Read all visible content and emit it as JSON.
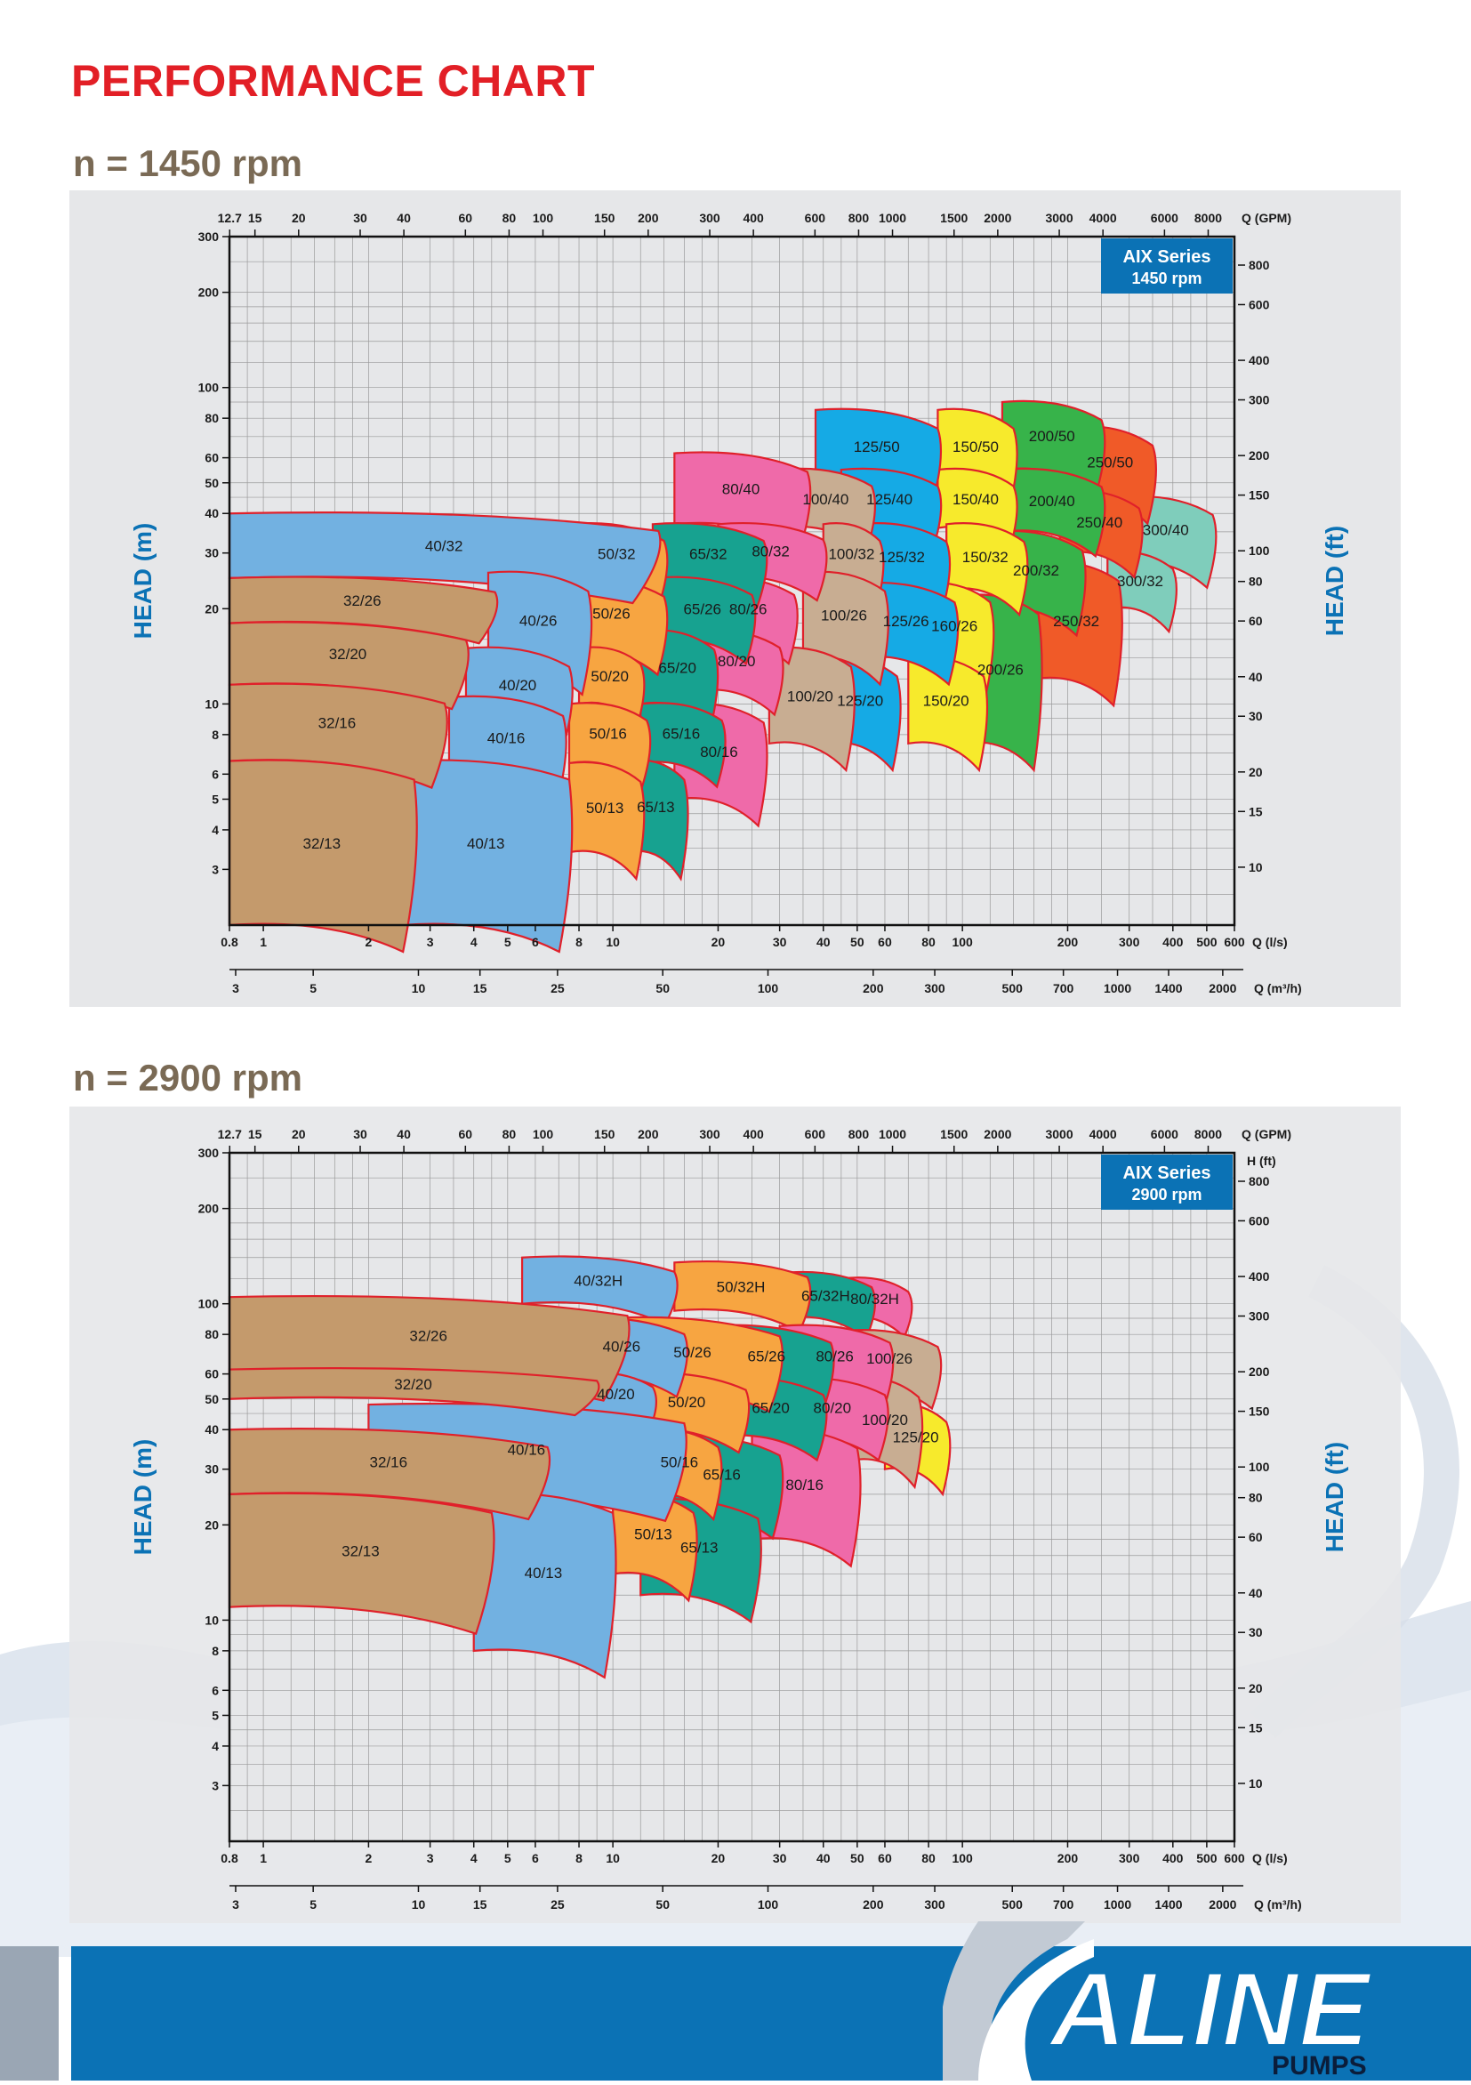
{
  "page": {
    "title": "PERFORMANCE CHART"
  },
  "brand": {
    "logo_text": "ALINE",
    "logo_sub": "PUMPS",
    "colors": {
      "title_red": "#e21f26",
      "blue": "#0b72b5",
      "grey_heading": "#7a6a55"
    }
  },
  "axes": {
    "gpm_label": "Q (GPM)",
    "ls_label": "Q (l/s)",
    "m3h_label": "Q (m³/h)",
    "head_m_label": "HEAD (m)",
    "head_ft_label": "HEAD (ft)",
    "hft_label": "H (ft)",
    "gpm_ticks": [
      "12.7",
      "15",
      "20",
      "30",
      "40",
      "60",
      "80",
      "100",
      "150",
      "200",
      "300",
      "400",
      "600",
      "800",
      "1000",
      "1500",
      "2000",
      "3000",
      "4000",
      "6000",
      "8000"
    ],
    "ls_ticks": [
      "0.8",
      "1",
      "2",
      "3",
      "4",
      "5",
      "6",
      "8",
      "10",
      "20",
      "30",
      "40",
      "50",
      "60",
      "80",
      "100",
      "200",
      "300",
      "400",
      "500",
      "600"
    ],
    "m3h_ticks": [
      "3",
      "5",
      "10",
      "15",
      "25",
      "50",
      "100",
      "200",
      "300",
      "500",
      "700",
      "1000",
      "1400",
      "2000"
    ],
    "head_m_ticks": [
      "300",
      "200",
      "100",
      "80",
      "60",
      "50",
      "40",
      "30",
      "20",
      "10",
      "8",
      "6",
      "5",
      "4",
      "3"
    ],
    "head_ft_ticks": [
      "800",
      "600",
      "400",
      "300",
      "200",
      "150",
      "100",
      "80",
      "60",
      "40",
      "30",
      "20",
      "15",
      "10"
    ]
  },
  "chart_data": [
    {
      "type": "area",
      "heading": "n = 1450 rpm",
      "badge": {
        "series": "AIX Series",
        "speed": "1450 rpm"
      },
      "x_scale": "log",
      "y_scale": "log",
      "xlim": [
        0.8,
        600
      ],
      "ylim": [
        2,
        300
      ],
      "grid": true,
      "regions": [
        {
          "name": "32/13",
          "color": "#c49a6c",
          "ls": [
            0.8,
            2.6
          ],
          "head_max": 6.6,
          "head_min": 2.0
        },
        {
          "name": "32/16",
          "color": "#c49a6c",
          "ls": [
            0.8,
            3.2
          ],
          "head_max": 11.5,
          "head_min": 6.6
        },
        {
          "name": "32/20",
          "color": "#c49a6c",
          "ls": [
            0.8,
            3.7
          ],
          "head_max": 18.0,
          "head_min": 11.5
        },
        {
          "name": "32/26",
          "color": "#c49a6c",
          "ls": [
            0.8,
            4.5
          ],
          "head_max": 25.0,
          "head_min": 18.0
        },
        {
          "name": "40/32",
          "color": "#72b1e1",
          "ls": [
            0.8,
            13
          ],
          "head_max": 40.0,
          "head_min": 25.0
        },
        {
          "name": "40/26",
          "color": "#72b1e1",
          "ls": [
            4.2,
            8.5
          ],
          "head_max": 26.0,
          "head_min": 13.0
        },
        {
          "name": "40/20",
          "color": "#72b1e1",
          "ls": [
            3.6,
            7.5
          ],
          "head_max": 15.0,
          "head_min": 8.8
        },
        {
          "name": "40/16",
          "color": "#72b1e1",
          "ls": [
            3.3,
            7.0
          ],
          "head_max": 10.5,
          "head_min": 5.8
        },
        {
          "name": "40/13",
          "color": "#72b1e1",
          "ls": [
            2.4,
            7.5
          ],
          "head_max": 6.5,
          "head_min": 2.0
        },
        {
          "name": "50/32",
          "color": "#f7a541",
          "ls": [
            7.5,
            14
          ],
          "head_max": 37,
          "head_min": 24
        },
        {
          "name": "50/26",
          "color": "#f7a541",
          "ls": [
            7,
            14
          ],
          "head_max": 25,
          "head_min": 15
        },
        {
          "name": "50/20",
          "color": "#f7a541",
          "ls": [
            8,
            12
          ],
          "head_max": 15,
          "head_min": 10
        },
        {
          "name": "50/16",
          "color": "#f7a541",
          "ls": [
            7.5,
            12.5
          ],
          "head_max": 10,
          "head_min": 6.5
        },
        {
          "name": "50/13",
          "color": "#f7a541",
          "ls": [
            7.5,
            12
          ],
          "head_max": 6.5,
          "head_min": 3.5
        },
        {
          "name": "65/32",
          "color": "#17a290",
          "ls": [
            13,
            26
          ],
          "head_max": 37,
          "head_min": 24
        },
        {
          "name": "65/26",
          "color": "#17a290",
          "ls": [
            13,
            25
          ],
          "head_max": 25,
          "head_min": 16
        },
        {
          "name": "65/20",
          "color": "#17a290",
          "ls": [
            12,
            19
          ],
          "head_max": 17,
          "head_min": 10
        },
        {
          "name": "65/16",
          "color": "#17a290",
          "ls": [
            12,
            20
          ],
          "head_max": 10,
          "head_min": 6.5
        },
        {
          "name": "65/13",
          "color": "#17a290",
          "ls": [
            11,
            16
          ],
          "head_max": 6.5,
          "head_min": 3.5
        },
        {
          "name": "80/40",
          "color": "#ef6aa9",
          "ls": [
            15,
            35
          ],
          "head_max": 60,
          "head_min": 37
        },
        {
          "name": "80/32",
          "color": "#ef6aa9",
          "ls": [
            20,
            40
          ],
          "head_max": 37,
          "head_min": 25
        },
        {
          "name": "80/26",
          "color": "#ef6aa9",
          "ls": [
            18,
            33
          ],
          "head_max": 25,
          "head_min": 16
        },
        {
          "name": "80/20",
          "color": "#ef6aa9",
          "ls": [
            17,
            30
          ],
          "head_max": 17,
          "head_min": 11
        },
        {
          "name": "80/16",
          "color": "#ef6aa9",
          "ls": [
            15,
            27
          ],
          "head_max": 10,
          "head_min": 5
        }
      ],
      "labels": [
        "32/13",
        "32/16",
        "32/20",
        "32/26",
        "40/32",
        "40/26",
        "40/20",
        "40/16",
        "40/13",
        "50/32",
        "50/26",
        "50/20",
        "50/16",
        "50/13",
        "65/32",
        "65/26",
        "65/20",
        "65/16",
        "65/13",
        "80/40",
        "80/32",
        "80/26",
        "80/20",
        "80/16",
        "100/40",
        "100/32",
        "100/26",
        "100/20",
        "125/50",
        "125/40",
        "125/32",
        "125/26",
        "125/20",
        "150/50",
        "150/40",
        "150/32",
        "160/26",
        "150/20",
        "200/50",
        "200/40",
        "200/32",
        "200/26",
        "250/50",
        "250/40",
        "250/32",
        "300/40",
        "300/32"
      ]
    },
    {
      "type": "area",
      "heading": "n = 2900 rpm",
      "badge": {
        "series": "AIX Series",
        "speed": "2900 rpm"
      },
      "x_scale": "log",
      "y_scale": "log",
      "xlim": [
        0.8,
        600
      ],
      "ylim": [
        2,
        300
      ],
      "grid": true,
      "labels": [
        "40/32H",
        "50/32H",
        "65/32H",
        "80/32H",
        "32/26",
        "40/26",
        "50/26",
        "65/26",
        "80/26",
        "100/26",
        "32/20",
        "40/20",
        "50/20",
        "65/20",
        "80/20",
        "100/20",
        "125/20",
        "32/16",
        "40/16",
        "50/16",
        "65/16",
        "80/16",
        "32/13",
        "40/13",
        "50/13",
        "65/13"
      ]
    }
  ]
}
